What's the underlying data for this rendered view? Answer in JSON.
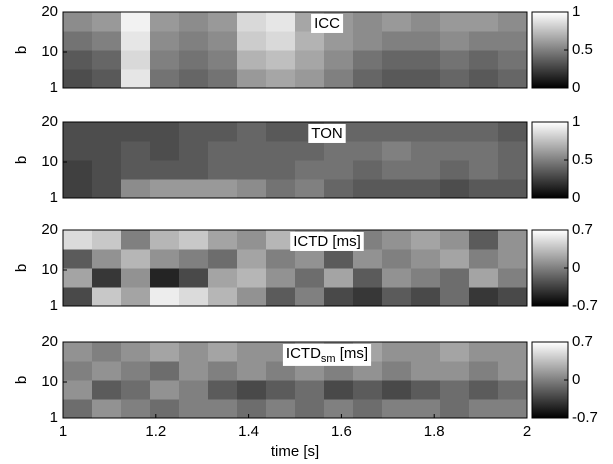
{
  "chart_data": [
    {
      "type": "heatmap",
      "title": "ICC",
      "ylabel": "b",
      "xlim": [
        1,
        2
      ],
      "ylim": [
        1,
        20
      ],
      "yticks": [
        1,
        10,
        20
      ],
      "clim": [
        0,
        1
      ],
      "cticks": [
        0,
        0.5,
        1
      ],
      "colormap": "gray",
      "z": [
        [
          0.3,
          0.35,
          0.9,
          0.45,
          0.4,
          0.45,
          0.6,
          0.65,
          0.6,
          0.5,
          0.4,
          0.35,
          0.35,
          0.4,
          0.35,
          0.4
        ],
        [
          0.35,
          0.4,
          0.85,
          0.5,
          0.45,
          0.5,
          0.7,
          0.75,
          0.65,
          0.55,
          0.45,
          0.4,
          0.4,
          0.45,
          0.4,
          0.45
        ],
        [
          0.45,
          0.5,
          0.9,
          0.55,
          0.5,
          0.55,
          0.8,
          0.85,
          0.7,
          0.6,
          0.55,
          0.5,
          0.5,
          0.55,
          0.5,
          0.5
        ],
        [
          0.55,
          0.6,
          0.95,
          0.6,
          0.55,
          0.6,
          0.85,
          0.9,
          0.65,
          0.6,
          0.55,
          0.6,
          0.55,
          0.6,
          0.6,
          0.55
        ]
      ]
    },
    {
      "type": "heatmap",
      "title": "TON",
      "ylabel": "b",
      "xlim": [
        1,
        2
      ],
      "ylim": [
        1,
        20
      ],
      "yticks": [
        1,
        10,
        20
      ],
      "clim": [
        0,
        1
      ],
      "cticks": [
        0,
        0.5,
        1
      ],
      "colormap": "gray",
      "z": [
        [
          0.25,
          0.3,
          0.55,
          0.6,
          0.6,
          0.6,
          0.55,
          0.45,
          0.5,
          0.4,
          0.35,
          0.35,
          0.35,
          0.3,
          0.35,
          0.35
        ],
        [
          0.25,
          0.3,
          0.35,
          0.35,
          0.35,
          0.4,
          0.4,
          0.4,
          0.45,
          0.45,
          0.4,
          0.45,
          0.45,
          0.4,
          0.45,
          0.4
        ],
        [
          0.3,
          0.3,
          0.35,
          0.3,
          0.35,
          0.4,
          0.4,
          0.4,
          0.4,
          0.45,
          0.45,
          0.5,
          0.45,
          0.45,
          0.45,
          0.4
        ],
        [
          0.3,
          0.3,
          0.3,
          0.3,
          0.35,
          0.35,
          0.4,
          0.35,
          0.35,
          0.4,
          0.4,
          0.4,
          0.4,
          0.4,
          0.4,
          0.35
        ]
      ]
    },
    {
      "type": "heatmap",
      "title": "ICTD [ms]",
      "ylabel": "b",
      "xlim": [
        1,
        2
      ],
      "ylim": [
        1,
        20
      ],
      "yticks": [
        1,
        10,
        20
      ],
      "clim": [
        -0.7,
        0.7
      ],
      "cticks": [
        -0.7,
        0,
        0.7
      ],
      "colormap": "gray",
      "z": [
        [
          -0.3,
          0.4,
          0.2,
          0.6,
          0.5,
          0.3,
          0.1,
          -0.2,
          0.0,
          -0.3,
          -0.4,
          -0.2,
          -0.3,
          -0.1,
          -0.4,
          -0.3
        ],
        [
          0.2,
          -0.4,
          0.1,
          -0.5,
          -0.3,
          0.2,
          0.3,
          0.1,
          -0.1,
          0.2,
          -0.2,
          0.1,
          0.0,
          -0.1,
          0.2,
          0.0
        ],
        [
          -0.2,
          0.1,
          0.3,
          0.1,
          0.0,
          -0.1,
          0.2,
          0.0,
          0.1,
          -0.2,
          0.1,
          0.0,
          0.1,
          0.2,
          0.0,
          0.1
        ],
        [
          0.5,
          0.4,
          0.0,
          0.3,
          0.4,
          0.2,
          0.1,
          0.3,
          0.2,
          0.1,
          0.0,
          0.1,
          0.2,
          0.1,
          -0.2,
          0.1
        ]
      ]
    },
    {
      "type": "heatmap",
      "title": "ICTD",
      "title_subscript": "sm",
      "title_suffix": " [ms]",
      "ylabel": "b",
      "xlim": [
        1,
        2
      ],
      "ylim": [
        1,
        20
      ],
      "yticks": [
        1,
        10,
        20
      ],
      "xticks": [
        1,
        1.2,
        1.4,
        1.6,
        1.8,
        2
      ],
      "xlabel": "time [s]",
      "clim": [
        -0.7,
        0.7
      ],
      "cticks": [
        -0.7,
        0,
        0.7
      ],
      "colormap": "gray",
      "z": [
        [
          -0.1,
          0.1,
          0.0,
          -0.1,
          0.0,
          0.0,
          -0.1,
          0.0,
          -0.1,
          0.0,
          -0.1,
          0.0,
          0.0,
          -0.1,
          0.0,
          0.0
        ],
        [
          0.1,
          -0.2,
          -0.1,
          0.1,
          0.0,
          -0.2,
          -0.3,
          -0.2,
          -0.1,
          -0.3,
          -0.2,
          -0.3,
          -0.2,
          -0.1,
          -0.2,
          -0.1
        ],
        [
          0.0,
          0.1,
          0.0,
          -0.1,
          0.1,
          0.0,
          0.1,
          0.0,
          0.1,
          0.0,
          0.1,
          0.0,
          0.1,
          0.1,
          0.0,
          0.1
        ],
        [
          0.1,
          0.0,
          0.1,
          0.2,
          0.1,
          0.2,
          0.1,
          0.1,
          0.2,
          0.1,
          0.2,
          0.1,
          0.1,
          0.2,
          0.1,
          0.1
        ]
      ]
    }
  ]
}
